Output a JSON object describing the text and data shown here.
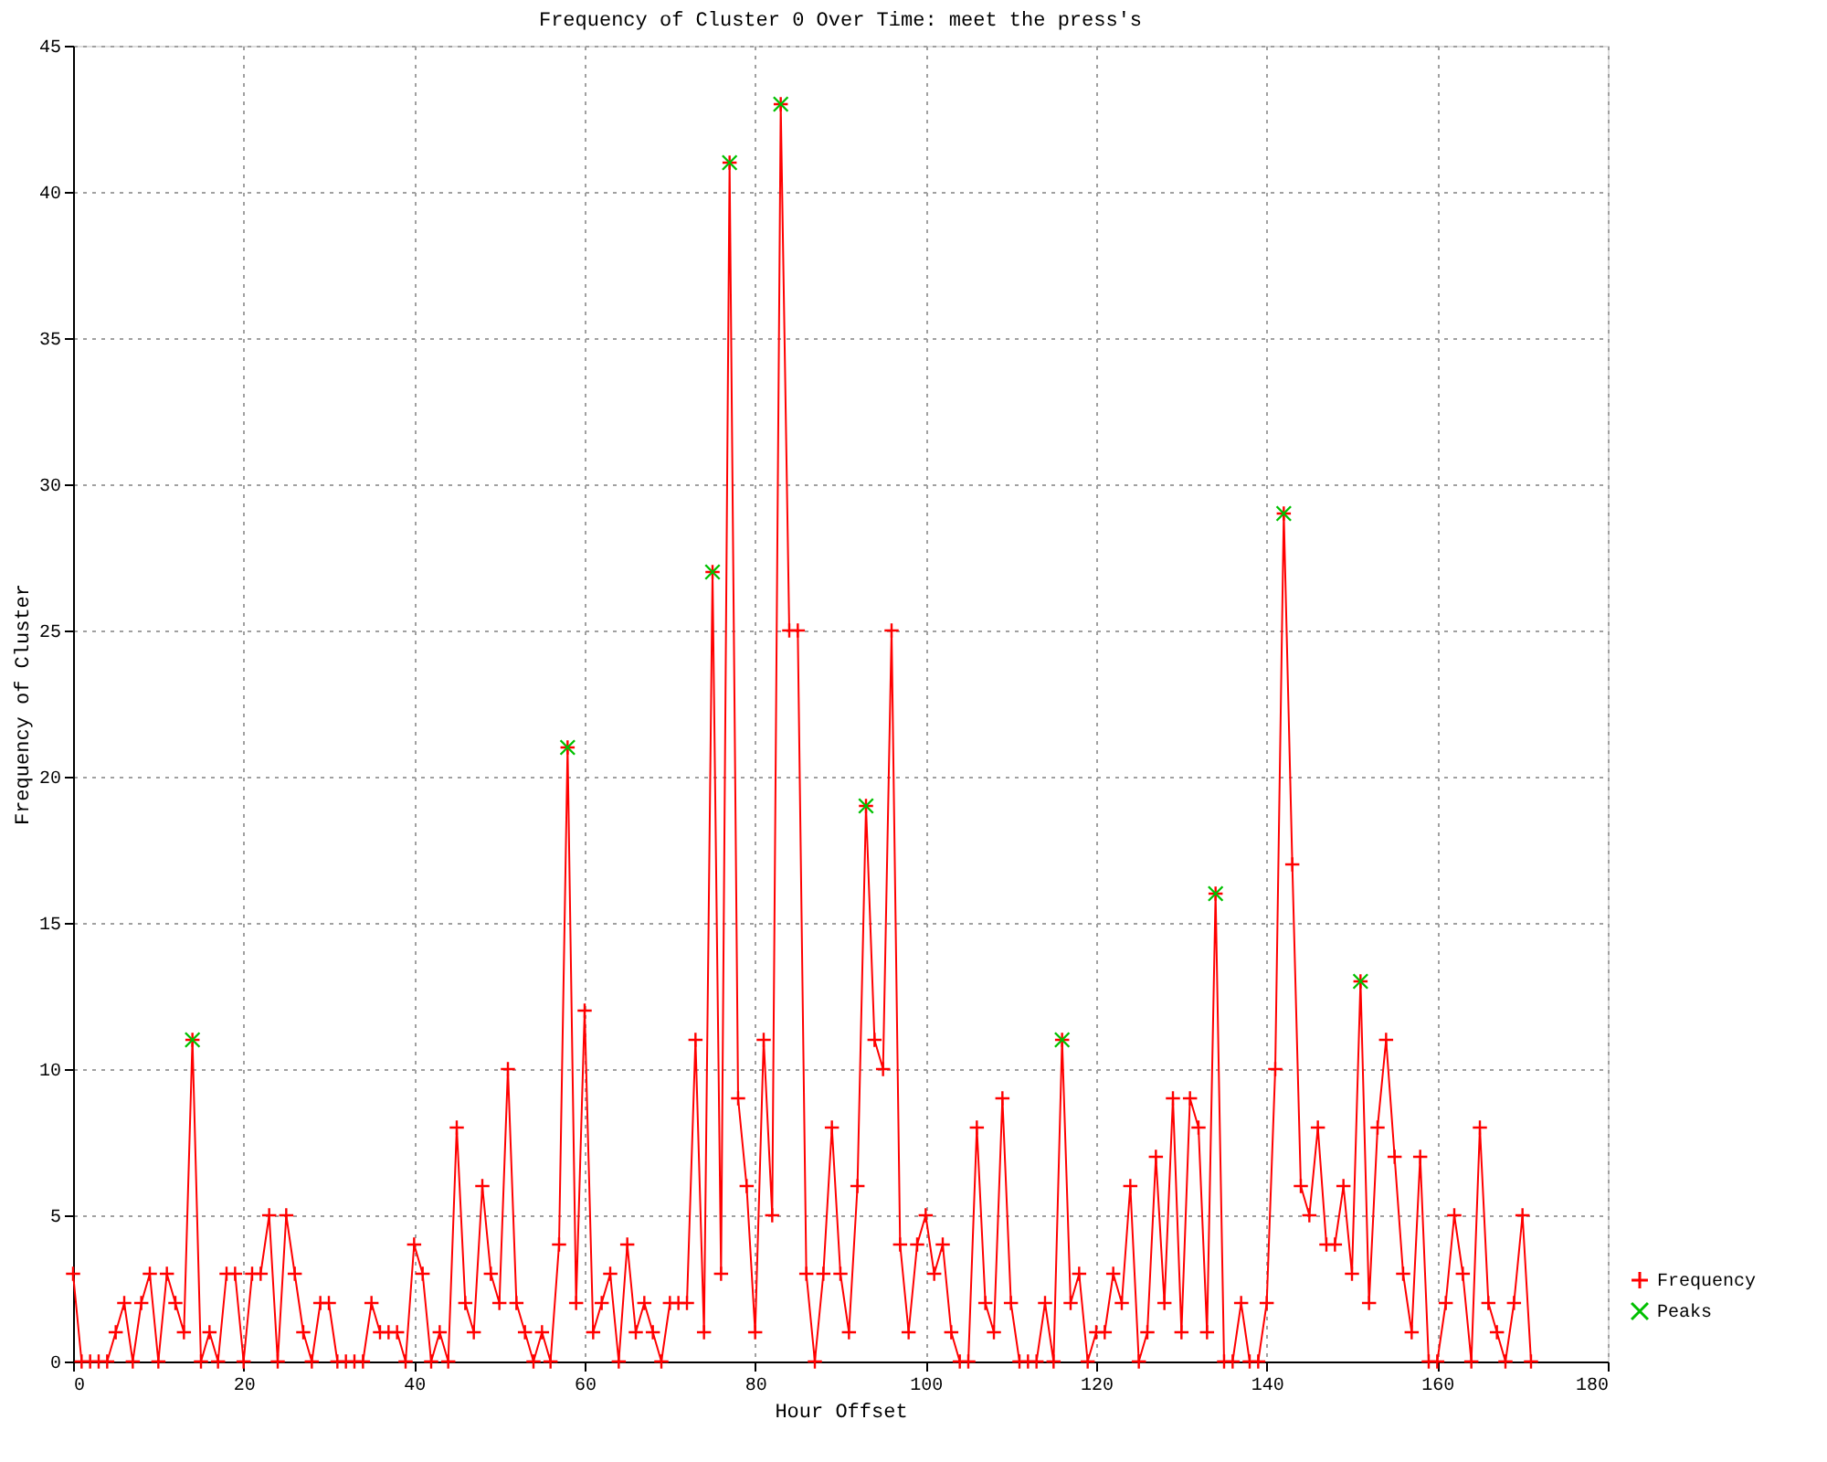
{
  "chart_data": {
    "type": "line",
    "title": "Frequency of Cluster 0 Over Time: meet the press's",
    "xlabel": "Hour Offset",
    "ylabel": "Frequency of Cluster",
    "xlim": [
      0,
      180
    ],
    "xticks": [
      0,
      20,
      40,
      60,
      80,
      100,
      120,
      140,
      160,
      180
    ],
    "ylim": [
      0,
      45
    ],
    "yticks": [
      0,
      5,
      10,
      15,
      20,
      25,
      30,
      35,
      40,
      45
    ],
    "grid": true,
    "legend": "bottom right",
    "series": [
      {
        "name": "Frequency",
        "type": "line",
        "marker": "cross",
        "line_style": "solid",
        "color": "#ff0000",
        "x": [
          0,
          1,
          2,
          3,
          4,
          5,
          6,
          7,
          8,
          9,
          10,
          11,
          12,
          13,
          14,
          15,
          16,
          17,
          18,
          19,
          20,
          21,
          22,
          23,
          24,
          25,
          26,
          27,
          28,
          29,
          30,
          31,
          32,
          33,
          34,
          35,
          36,
          37,
          38,
          39,
          40,
          41,
          42,
          43,
          44,
          45,
          46,
          47,
          48,
          49,
          50,
          51,
          52,
          53,
          54,
          55,
          56,
          57,
          58,
          59,
          60,
          61,
          62,
          63,
          64,
          65,
          66,
          67,
          68,
          69,
          70,
          71,
          72,
          73,
          74,
          75,
          76,
          77,
          78,
          79,
          80,
          81,
          82,
          83,
          84,
          85,
          86,
          87,
          88,
          89,
          90,
          91,
          92,
          93,
          94,
          95,
          96,
          97,
          98,
          99,
          100,
          101,
          102,
          103,
          104,
          105,
          106,
          107,
          108,
          109,
          110,
          111,
          112,
          113,
          114,
          115,
          116,
          117,
          118,
          119,
          120,
          121,
          122,
          123,
          124,
          125,
          126,
          127,
          128,
          129,
          130,
          131,
          132,
          133,
          134,
          135,
          136,
          137,
          138,
          139,
          140,
          141,
          142,
          143,
          144,
          145,
          146,
          147,
          148,
          149,
          150,
          151,
          152,
          153,
          154,
          155,
          156,
          157,
          158,
          159,
          160,
          161,
          162,
          163,
          164,
          165,
          166,
          167,
          168,
          169,
          170,
          171
        ],
        "values": [
          3,
          0,
          0,
          0,
          0,
          1,
          2,
          0,
          2,
          3,
          0,
          3,
          2,
          1,
          11,
          0,
          1,
          0,
          3,
          3,
          0,
          3,
          3,
          5,
          0,
          5,
          3,
          1,
          0,
          2,
          2,
          0,
          0,
          0,
          0,
          2,
          1,
          1,
          1,
          0,
          4,
          3,
          0,
          1,
          0,
          8,
          2,
          1,
          6,
          3,
          2,
          10,
          2,
          1,
          0,
          1,
          0,
          4,
          21,
          2,
          12,
          1,
          2,
          3,
          0,
          4,
          1,
          2,
          1,
          0,
          2,
          2,
          2,
          11,
          1,
          27,
          3,
          41,
          9,
          6,
          1,
          11,
          5,
          43,
          25,
          25,
          3,
          0,
          3,
          8,
          3,
          1,
          6,
          19,
          11,
          10,
          25,
          4,
          1,
          4,
          5,
          3,
          4,
          1,
          0,
          0,
          8,
          2,
          1,
          9,
          2,
          0,
          0,
          0,
          2,
          0,
          11,
          2,
          3,
          0,
          1,
          1,
          3,
          2,
          6,
          0,
          1,
          7,
          2,
          9,
          1,
          9,
          8,
          1,
          16,
          0,
          0,
          2,
          0,
          0,
          2,
          10,
          29,
          17,
          6,
          5,
          8,
          4,
          4,
          6,
          3,
          13,
          2,
          8,
          11,
          7,
          3,
          1,
          7,
          0,
          0,
          2,
          5,
          3,
          0,
          8,
          2,
          1,
          0,
          2,
          5,
          0
        ]
      },
      {
        "name": "Peaks",
        "type": "scatter",
        "marker": "cross",
        "color": "#00c000",
        "x": [
          14,
          58,
          75,
          77,
          83,
          93,
          116,
          134,
          142,
          151
        ],
        "values": [
          11,
          21,
          27,
          41,
          43,
          19,
          11,
          16,
          29,
          13
        ]
      }
    ]
  }
}
